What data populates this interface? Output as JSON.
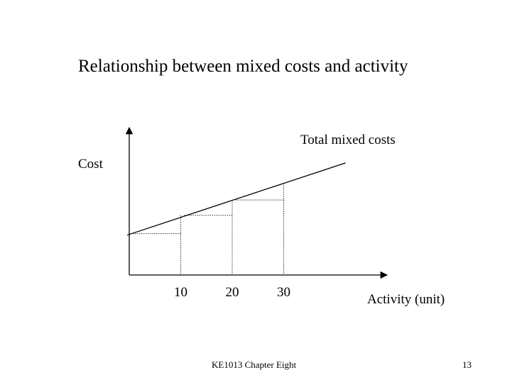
{
  "slide": {
    "title": "Relationship between mixed costs and activity"
  },
  "footer": {
    "course": "KE1013 Chapter Eight",
    "page": "13"
  },
  "colors": {
    "background": "#ffffff",
    "ink": "#000000"
  },
  "chart_data": {
    "type": "line",
    "title": "",
    "xlabel": "Activity (unit)",
    "ylabel": "Cost",
    "line_label": "Total mixed costs",
    "x_ticks": [
      "10",
      "20",
      "30"
    ],
    "grid": false,
    "y_ticks_printed": false,
    "line": {
      "x": [
        0,
        10,
        20,
        30
      ],
      "y": [
        5.4,
        7.8,
        9.8,
        12.0
      ]
    },
    "steps": [
      {
        "x_from": 0,
        "x_to": 10,
        "level": 5.4
      },
      {
        "x_from": 10,
        "x_to": 20,
        "level": 7.8
      },
      {
        "x_from": 20,
        "x_to": 30,
        "level": 9.8
      }
    ],
    "xlim": [
      0,
      50
    ],
    "ylim": [
      0,
      20
    ]
  }
}
